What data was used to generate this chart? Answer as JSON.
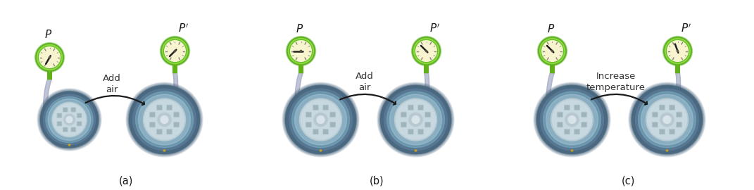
{
  "panels": [
    {
      "label": "(a)",
      "action_text": "Add\nair",
      "needle_before_deg": -150,
      "needle_after_deg": -135,
      "tire_before_scale": 0.82,
      "tire_after_scale": 1.0
    },
    {
      "label": "(b)",
      "action_text": "Add\nair",
      "needle_before_deg": -90,
      "needle_after_deg": -45,
      "tire_before_scale": 1.0,
      "tire_after_scale": 1.0
    },
    {
      "label": "(c)",
      "action_text": "Increase\ntemperature",
      "needle_before_deg": -45,
      "needle_after_deg": -20,
      "tire_before_scale": 1.0,
      "tire_after_scale": 1.0
    }
  ],
  "tire_dark": "#4a6880",
  "tire_mid": "#5a7a96",
  "tire_light": "#7aaabf",
  "tire_inner_light": "#a8c8d8",
  "rim_outer": "#b8ccd4",
  "rim_mid": "#c8d8e0",
  "rim_inner": "#d8e4ea",
  "rim_hub": "#b8c8d0",
  "spoke_hole": "#a0b4bc",
  "spoke_raised": "#c0d0d8",
  "valve_color": "#c8a020",
  "gauge_outer_dark": "#5ab020",
  "gauge_outer_light": "#90d840",
  "gauge_inner_ring": "#60c028",
  "gauge_face": "#f8f4d0",
  "gauge_face_inner": "#f4f0c0",
  "gauge_needle": "#222222",
  "gauge_stem": "#60b018",
  "hose_outer": "#b0b4cc",
  "hose_inner": "#c8ccdc",
  "arrow_color": "#1a1a1a",
  "text_color": "#333333",
  "label_color": "#1a1a1a",
  "bg": "#ffffff"
}
